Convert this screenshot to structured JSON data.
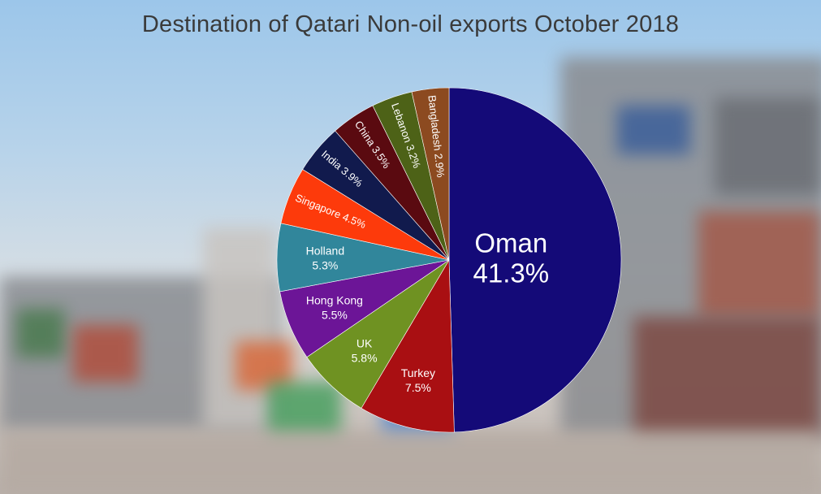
{
  "title": "Destination of Qatari Non-oil exports October 2018",
  "chart_data": {
    "type": "pie",
    "title": "Destination of Qatari Non-oil exports October 2018",
    "start": "12 o'clock, clockwise",
    "slices": [
      {
        "label": "Oman",
        "value": 41.3,
        "text": "41.3%",
        "color": "#140a78",
        "label_style": "horizontal"
      },
      {
        "label": "Turkey",
        "value": 7.5,
        "text": "7.5%",
        "color": "#a90f12",
        "label_style": "horizontal"
      },
      {
        "label": "UK",
        "value": 5.8,
        "text": "5.8%",
        "color": "#6f9222",
        "label_style": "horizontal"
      },
      {
        "label": "Hong Kong",
        "value": 5.5,
        "text": "5.5%",
        "color": "#6c1597",
        "label_style": "horizontal"
      },
      {
        "label": "Holland",
        "value": 5.3,
        "text": "5.3%",
        "color": "#31869b",
        "label_style": "horizontal"
      },
      {
        "label": "Singapore",
        "value": 4.5,
        "text": "Singapore 4.5%",
        "color": "#fd3a0b",
        "label_style": "radial"
      },
      {
        "label": "India",
        "value": 3.9,
        "text": "India 3.9%",
        "color": "#111a4d",
        "label_style": "radial"
      },
      {
        "label": "China",
        "value": 3.5,
        "text": "China 3.5%",
        "color": "#5a0a10",
        "label_style": "radial"
      },
      {
        "label": "Lebanon",
        "value": 3.2,
        "text": "Lebanon 3.2%",
        "color": "#4d6217",
        "label_style": "radial"
      },
      {
        "label": "Bangladesh",
        "value": 2.9,
        "text": "Bangladesh 2.9%",
        "color": "#8c4a20",
        "label_style": "radial"
      }
    ]
  }
}
